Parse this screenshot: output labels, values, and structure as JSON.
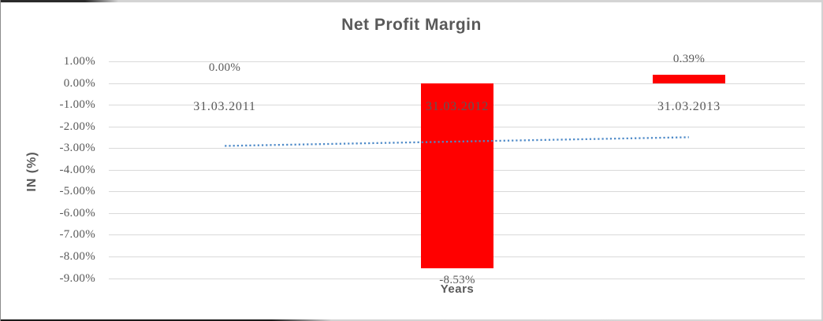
{
  "chart_data": {
    "type": "bar",
    "title": "Net Profit Margin",
    "xlabel": "Years",
    "ylabel": "IN (%)",
    "categories": [
      "31.03.2011",
      "31.03.2012",
      "31.03.2013"
    ],
    "series": [
      {
        "name": "Net Profit Margin",
        "color": "#ff0000",
        "values": [
          0.0,
          -8.53,
          0.39
        ],
        "data_labels": [
          "0.00%",
          "-8.53%",
          "0.39%"
        ]
      }
    ],
    "trendline": {
      "type": "linear",
      "style": "dotted",
      "color": "#4e8ac8",
      "start_value": -2.9,
      "end_value": -2.5
    },
    "y_axis": {
      "ticks": [
        "1.00%",
        "0.00%",
        "-1.00%",
        "-2.00%",
        "-3.00%",
        "-4.00%",
        "-5.00%",
        "-6.00%",
        "-7.00%",
        "-8.00%",
        "-9.00%"
      ],
      "tick_values": [
        1,
        0,
        -1,
        -2,
        -3,
        -4,
        -5,
        -6,
        -7,
        -8,
        -9
      ],
      "max": 1,
      "min": -9
    },
    "grid": true,
    "legend": false,
    "text_color": "#595959",
    "gridline_color": "#d9d9d9",
    "background_color": "#ffffff"
  }
}
